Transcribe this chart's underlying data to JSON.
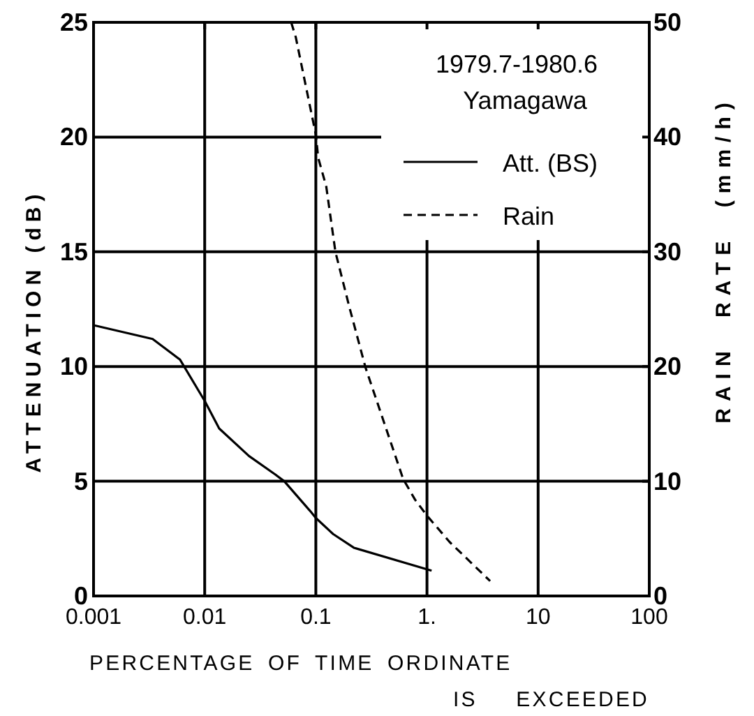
{
  "chart_data": {
    "type": "line",
    "title": "1979.7-1980.6",
    "subtitle": "Yamagawa",
    "xlabel": "PERCENTAGE OF TIME ORDINATE IS EXCEEDED",
    "ylabel": "ATTENUATION (dB)",
    "y2label": "RAIN RATE (mm/h)",
    "log": "x",
    "xlim": [
      0.001,
      100
    ],
    "xticks": [
      0.001,
      0.01,
      0.1,
      {
        "value": 1,
        "label": "1."
      },
      10,
      100
    ],
    "ylim": [
      0,
      25
    ],
    "yticks": [
      0,
      5,
      10,
      15,
      20,
      25
    ],
    "y2lim": [
      0,
      50
    ],
    "y2ticks": [
      0,
      10,
      20,
      30,
      40,
      50
    ],
    "grid": true,
    "legend": "top right",
    "series": [
      {
        "name": "Att. (BS)",
        "color": "#000000",
        "line_style": "solid",
        "x": [
          0.001,
          0.0034,
          0.006,
          0.01,
          0.0135,
          0.025,
          0.043,
          0.052,
          0.089,
          0.1,
          0.143,
          0.22,
          1.1
        ],
        "values": [
          11.8,
          11.2,
          10.3,
          8.5,
          7.3,
          6.1,
          5.3,
          5.0,
          3.7,
          3.4,
          2.7,
          2.1,
          1.1
        ]
      },
      {
        "name": "Rain",
        "color": "#000000",
        "line_style": "dashed",
        "axis": "y2",
        "x": [
          0.06,
          0.066,
          0.1,
          0.105,
          0.124,
          0.15,
          0.2,
          0.28,
          0.61,
          0.78,
          1,
          1.6,
          3.7
        ],
        "values": [
          50,
          48.7,
          40.2,
          38.2,
          35.7,
          30,
          25.2,
          19.9,
          10.2,
          8.4,
          7,
          4.7,
          1.3
        ]
      }
    ]
  }
}
